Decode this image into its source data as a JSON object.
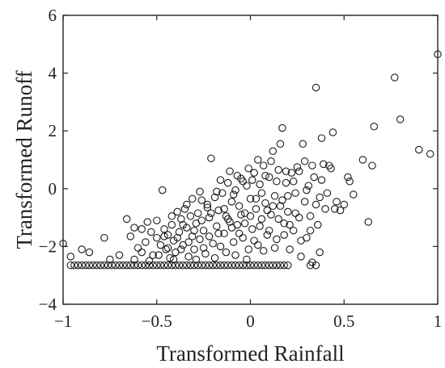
{
  "chart_data": {
    "type": "scatter",
    "title": "",
    "xlabel": "Transformed Rainfall",
    "ylabel": "Transformed Runoff",
    "xlim": [
      -1,
      1
    ],
    "ylim": [
      -4,
      6
    ],
    "xticks": [
      -1,
      -0.5,
      0,
      0.5,
      1
    ],
    "xtick_labels": [
      "−1",
      "−0.5",
      "0",
      "0.5",
      "1"
    ],
    "yticks": [
      -4,
      -2,
      0,
      2,
      4,
      6
    ],
    "ytick_labels": [
      "−4",
      "−2",
      "0",
      "2",
      "4",
      "6"
    ],
    "grid": false,
    "legend": "none",
    "marker": "open-circle",
    "colors": {
      "marker": "#1a1a1a",
      "axis": "#222222"
    },
    "points": [
      [
        -0.96,
        -2.65
      ],
      [
        -0.94,
        -2.65
      ],
      [
        -0.92,
        -2.65
      ],
      [
        -0.9,
        -2.65
      ],
      [
        -0.88,
        -2.65
      ],
      [
        -0.86,
        -2.65
      ],
      [
        -0.84,
        -2.65
      ],
      [
        -0.82,
        -2.65
      ],
      [
        -0.8,
        -2.65
      ],
      [
        -0.78,
        -2.65
      ],
      [
        -0.76,
        -2.65
      ],
      [
        -0.74,
        -2.65
      ],
      [
        -0.72,
        -2.65
      ],
      [
        -0.7,
        -2.65
      ],
      [
        -0.68,
        -2.65
      ],
      [
        -0.66,
        -2.65
      ],
      [
        -0.64,
        -2.65
      ],
      [
        -0.62,
        -2.65
      ],
      [
        -0.6,
        -2.65
      ],
      [
        -0.58,
        -2.65
      ],
      [
        -0.56,
        -2.65
      ],
      [
        -0.54,
        -2.65
      ],
      [
        -0.52,
        -2.65
      ],
      [
        -0.5,
        -2.65
      ],
      [
        -0.48,
        -2.65
      ],
      [
        -0.46,
        -2.65
      ],
      [
        -0.44,
        -2.65
      ],
      [
        -0.42,
        -2.65
      ],
      [
        -0.4,
        -2.65
      ],
      [
        -0.38,
        -2.65
      ],
      [
        -0.36,
        -2.65
      ],
      [
        -0.34,
        -2.65
      ],
      [
        -0.32,
        -2.65
      ],
      [
        -0.3,
        -2.65
      ],
      [
        -0.28,
        -2.65
      ],
      [
        -0.26,
        -2.65
      ],
      [
        -0.24,
        -2.65
      ],
      [
        -0.22,
        -2.65
      ],
      [
        -0.2,
        -2.65
      ],
      [
        -0.18,
        -2.65
      ],
      [
        -0.16,
        -2.65
      ],
      [
        -0.14,
        -2.65
      ],
      [
        -0.12,
        -2.65
      ],
      [
        -0.1,
        -2.65
      ],
      [
        -0.08,
        -2.65
      ],
      [
        -0.06,
        -2.65
      ],
      [
        -0.04,
        -2.65
      ],
      [
        -0.02,
        -2.65
      ],
      [
        0.0,
        -2.65
      ],
      [
        0.02,
        -2.65
      ],
      [
        0.04,
        -2.65
      ],
      [
        0.06,
        -2.65
      ],
      [
        0.08,
        -2.65
      ],
      [
        0.1,
        -2.65
      ],
      [
        0.12,
        -2.65
      ],
      [
        0.14,
        -2.65
      ],
      [
        0.16,
        -2.65
      ],
      [
        0.18,
        -2.65
      ],
      [
        0.2,
        -2.65
      ],
      [
        0.32,
        -2.65
      ],
      [
        0.35,
        -2.65
      ],
      [
        -1.0,
        -1.9
      ],
      [
        -0.96,
        -2.35
      ],
      [
        -0.9,
        -2.1
      ],
      [
        -0.86,
        -2.2
      ],
      [
        -0.78,
        -1.7
      ],
      [
        -0.75,
        -2.45
      ],
      [
        -0.7,
        -2.3
      ],
      [
        -0.66,
        -1.05
      ],
      [
        -0.64,
        -1.65
      ],
      [
        -0.62,
        -1.35
      ],
      [
        -0.6,
        -2.05
      ],
      [
        -0.58,
        -2.2
      ],
      [
        -0.56,
        -1.85
      ],
      [
        -0.55,
        -1.15
      ],
      [
        -0.53,
        -1.5
      ],
      [
        -0.52,
        -2.3
      ],
      [
        -0.5,
        -1.7
      ],
      [
        -0.48,
        -1.95
      ],
      [
        -0.47,
        -0.05
      ],
      [
        -0.46,
        -1.4
      ],
      [
        -0.45,
        -2.1
      ],
      [
        -0.44,
        -1.6
      ],
      [
        -0.43,
        -2.4
      ],
      [
        -0.42,
        -1.25
      ],
      [
        -0.41,
        -1.8
      ],
      [
        -0.4,
        -2.2
      ],
      [
        -0.39,
        -0.8
      ],
      [
        -0.38,
        -1.5
      ],
      [
        -0.37,
        -1.05
      ],
      [
        -0.36,
        -1.95
      ],
      [
        -0.35,
        -0.7
      ],
      [
        -0.34,
        -1.35
      ],
      [
        -0.33,
        -2.35
      ],
      [
        -0.32,
        -0.95
      ],
      [
        -0.31,
        -1.65
      ],
      [
        -0.3,
        -2.1
      ],
      [
        -0.29,
        -1.2
      ],
      [
        -0.28,
        -0.85
      ],
      [
        -0.27,
        -1.75
      ],
      [
        -0.26,
        -0.4
      ],
      [
        -0.25,
        -1.45
      ],
      [
        -0.24,
        -2.25
      ],
      [
        -0.23,
        -0.65
      ],
      [
        -0.22,
        -1.0
      ],
      [
        -0.21,
        1.05
      ],
      [
        -0.2,
        -1.9
      ],
      [
        -0.19,
        -0.3
      ],
      [
        -0.18,
        -1.3
      ],
      [
        -0.17,
        -0.75
      ],
      [
        -0.16,
        -2.0
      ],
      [
        -0.15,
        -0.15
      ],
      [
        -0.14,
        -1.55
      ],
      [
        -0.13,
        -0.95
      ],
      [
        -0.12,
        0.2
      ],
      [
        -0.11,
        -1.15
      ],
      [
        -0.1,
        -0.45
      ],
      [
        -0.09,
        -1.85
      ],
      [
        -0.08,
        -0.05
      ],
      [
        -0.07,
        -1.25
      ],
      [
        -0.06,
        -0.6
      ],
      [
        -0.05,
        0.35
      ],
      [
        -0.04,
        -1.7
      ],
      [
        -0.03,
        -0.85
      ],
      [
        -0.02,
        0.1
      ],
      [
        -0.01,
        -2.1
      ],
      [
        0.0,
        -0.35
      ],
      [
        0.01,
        -1.4
      ],
      [
        0.02,
        0.55
      ],
      [
        0.03,
        -0.7
      ],
      [
        0.04,
        -1.95
      ],
      [
        0.05,
        0.15
      ],
      [
        0.06,
        -1.05
      ],
      [
        0.07,
        0.8
      ],
      [
        0.08,
        -0.5
      ],
      [
        0.09,
        -1.6
      ],
      [
        0.1,
        0.4
      ],
      [
        0.11,
        -0.9
      ],
      [
        0.12,
        1.3
      ],
      [
        0.13,
        -0.25
      ],
      [
        0.14,
        -1.75
      ],
      [
        0.15,
        0.65
      ],
      [
        0.16,
        -0.6
      ],
      [
        0.17,
        2.1
      ],
      [
        0.18,
        -1.2
      ],
      [
        0.19,
        0.2
      ],
      [
        0.2,
        -0.8
      ],
      [
        0.21,
        -2.1
      ],
      [
        0.22,
        0.55
      ],
      [
        0.23,
        -1.45
      ],
      [
        0.24,
        -0.15
      ],
      [
        0.25,
        0.75
      ],
      [
        0.26,
        -1.0
      ],
      [
        0.27,
        -2.35
      ],
      [
        0.28,
        1.55
      ],
      [
        0.29,
        -0.45
      ],
      [
        0.3,
        -1.7
      ],
      [
        0.31,
        0.1
      ],
      [
        0.32,
        -0.95
      ],
      [
        0.33,
        -2.55
      ],
      [
        0.34,
        0.4
      ],
      [
        0.35,
        3.5
      ],
      [
        0.36,
        -1.25
      ],
      [
        0.37,
        -0.3
      ],
      [
        0.38,
        1.75
      ],
      [
        0.39,
        0.85
      ],
      [
        0.4,
        -0.7
      ],
      [
        0.42,
        0.8
      ],
      [
        0.44,
        1.95
      ],
      [
        0.45,
        -0.7
      ],
      [
        0.48,
        -0.75
      ],
      [
        0.52,
        0.4
      ],
      [
        0.53,
        0.25
      ],
      [
        0.55,
        -0.2
      ],
      [
        0.6,
        1.0
      ],
      [
        0.63,
        -1.15
      ],
      [
        0.65,
        0.8
      ],
      [
        0.66,
        2.15
      ],
      [
        0.77,
        3.85
      ],
      [
        0.8,
        2.4
      ],
      [
        0.9,
        1.35
      ],
      [
        0.96,
        1.2
      ],
      [
        1.0,
        4.65
      ],
      [
        -0.62,
        -2.45
      ],
      [
        -0.58,
        -1.4
      ],
      [
        -0.54,
        -2.5
      ],
      [
        -0.5,
        -1.1
      ],
      [
        -0.49,
        -2.3
      ],
      [
        -0.46,
        -1.65
      ],
      [
        -0.44,
        -2.05
      ],
      [
        -0.42,
        -0.95
      ],
      [
        -0.41,
        -2.45
      ],
      [
        -0.39,
        -1.7
      ],
      [
        -0.37,
        -2.1
      ],
      [
        -0.36,
        -1.25
      ],
      [
        -0.34,
        -0.55
      ],
      [
        -0.33,
        -1.85
      ],
      [
        -0.31,
        -0.35
      ],
      [
        -0.3,
        -1.45
      ],
      [
        -0.29,
        -2.45
      ],
      [
        -0.27,
        -0.1
      ],
      [
        -0.26,
        -1.1
      ],
      [
        -0.25,
        -2.05
      ],
      [
        -0.23,
        -0.55
      ],
      [
        -0.22,
        -1.65
      ],
      [
        -0.21,
        -0.85
      ],
      [
        -0.19,
        -2.4
      ],
      [
        -0.18,
        -0.1
      ],
      [
        -0.17,
        -1.55
      ],
      [
        -0.16,
        0.3
      ],
      [
        -0.14,
        -0.7
      ],
      [
        -0.13,
        -2.2
      ],
      [
        -0.12,
        -1.05
      ],
      [
        -0.11,
        0.6
      ],
      [
        -0.1,
        -1.35
      ],
      [
        -0.09,
        -0.2
      ],
      [
        -0.08,
        -2.3
      ],
      [
        -0.07,
        0.45
      ],
      [
        -0.06,
        -1.55
      ],
      [
        -0.05,
        -0.9
      ],
      [
        -0.04,
        0.25
      ],
      [
        -0.03,
        -1.2
      ],
      [
        -0.02,
        -2.45
      ],
      [
        -0.01,
        0.7
      ],
      [
        0.0,
        -0.95
      ],
      [
        0.01,
        0.3
      ],
      [
        0.02,
        -1.8
      ],
      [
        0.03,
        -0.35
      ],
      [
        0.04,
        1.0
      ],
      [
        0.05,
        -1.3
      ],
      [
        0.06,
        -0.15
      ],
      [
        0.07,
        -2.15
      ],
      [
        0.08,
        0.45
      ],
      [
        0.09,
        -0.75
      ],
      [
        0.1,
        -1.45
      ],
      [
        0.11,
        0.95
      ],
      [
        0.12,
        -0.6
      ],
      [
        0.13,
        -2.05
      ],
      [
        0.14,
        0.25
      ],
      [
        0.15,
        -1.05
      ],
      [
        0.16,
        1.55
      ],
      [
        0.17,
        -0.4
      ],
      [
        0.18,
        -1.6
      ],
      [
        0.19,
        0.6
      ],
      [
        0.2,
        -0.25
      ],
      [
        0.21,
        -1.25
      ],
      [
        0.23,
        0.25
      ],
      [
        0.24,
        -0.85
      ],
      [
        0.26,
        0.6
      ],
      [
        0.27,
        -1.8
      ],
      [
        0.29,
        0.95
      ],
      [
        0.3,
        -0.05
      ],
      [
        0.32,
        -1.45
      ],
      [
        0.33,
        0.8
      ],
      [
        0.35,
        -0.55
      ],
      [
        0.37,
        -2.2
      ],
      [
        0.38,
        0.3
      ],
      [
        0.41,
        -0.15
      ],
      [
        0.43,
        0.7
      ],
      [
        0.46,
        -0.45
      ],
      [
        0.5,
        -0.55
      ]
    ]
  }
}
